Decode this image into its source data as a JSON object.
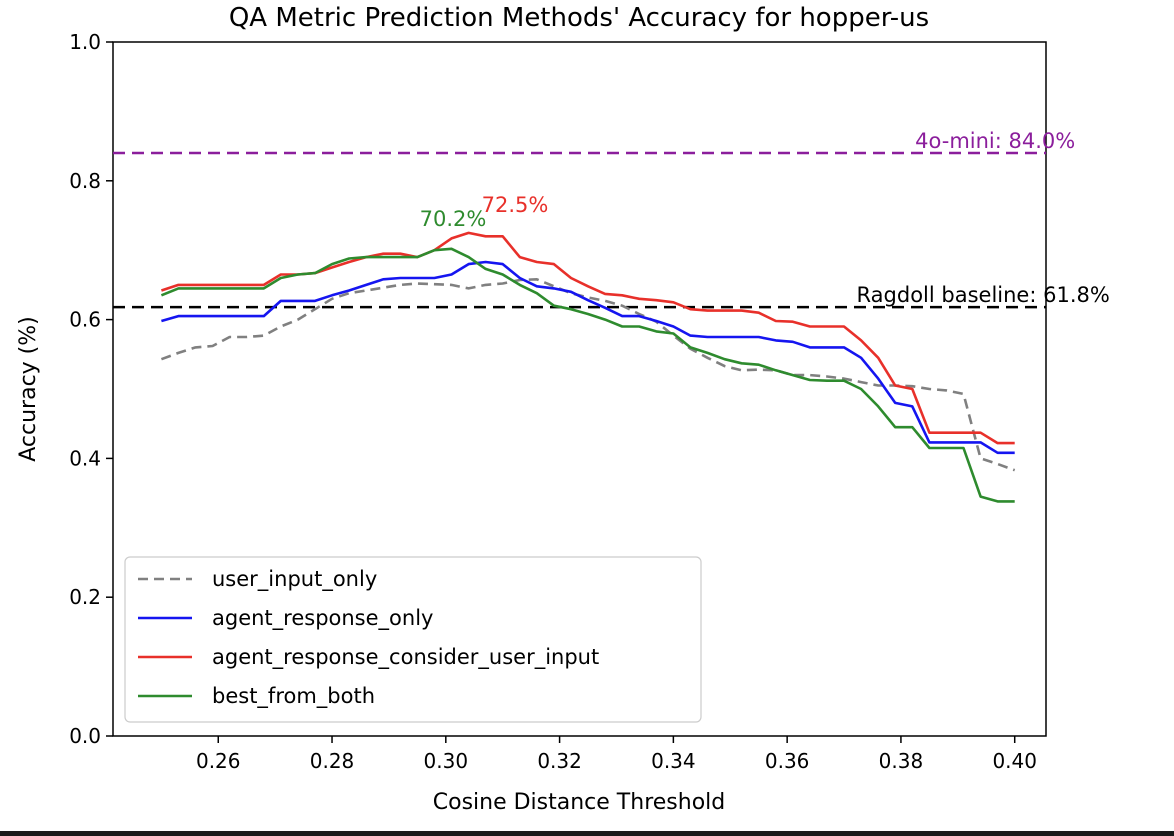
{
  "chart_data": {
    "type": "line",
    "title": "QA Metric Prediction Methods' Accuracy for hopper-us",
    "xlabel": "Cosine Distance Threshold",
    "ylabel": "Accuracy (%)",
    "xlim": [
      0.2415,
      0.4055
    ],
    "ylim": [
      0.0,
      1.0
    ],
    "xticks": [
      0.26,
      0.28,
      0.3,
      0.32,
      0.34,
      0.36,
      0.38,
      0.4
    ],
    "xtick_labels": [
      "0.26",
      "0.28",
      "0.30",
      "0.32",
      "0.34",
      "0.36",
      "0.38",
      "0.40"
    ],
    "yticks": [
      0.0,
      0.2,
      0.4,
      0.6,
      0.8,
      1.0
    ],
    "ytick_labels": [
      "0.0",
      "0.2",
      "0.4",
      "0.6",
      "0.8",
      "1.0"
    ],
    "grid": false,
    "legend_position": "lower-left",
    "x": [
      0.25,
      0.253,
      0.256,
      0.259,
      0.262,
      0.265,
      0.268,
      0.271,
      0.274,
      0.277,
      0.28,
      0.283,
      0.286,
      0.289,
      0.292,
      0.295,
      0.298,
      0.301,
      0.304,
      0.307,
      0.31,
      0.313,
      0.316,
      0.319,
      0.322,
      0.325,
      0.328,
      0.331,
      0.334,
      0.337,
      0.34,
      0.343,
      0.346,
      0.349,
      0.352,
      0.355,
      0.358,
      0.361,
      0.364,
      0.367,
      0.37,
      0.373,
      0.376,
      0.379,
      0.382,
      0.385,
      0.388,
      0.391,
      0.394,
      0.397,
      0.4
    ],
    "series": [
      {
        "name": "user_input_only",
        "color": "#808080",
        "dash": true,
        "values": [
          0.543,
          0.552,
          0.56,
          0.562,
          0.575,
          0.575,
          0.577,
          0.59,
          0.6,
          0.615,
          0.63,
          0.638,
          0.642,
          0.646,
          0.65,
          0.652,
          0.651,
          0.65,
          0.645,
          0.65,
          0.652,
          0.657,
          0.658,
          0.648,
          0.638,
          0.632,
          0.627,
          0.62,
          0.608,
          0.597,
          0.577,
          0.558,
          0.545,
          0.533,
          0.527,
          0.528,
          0.527,
          0.52,
          0.52,
          0.518,
          0.515,
          0.51,
          0.505,
          0.505,
          0.504,
          0.5,
          0.498,
          0.493,
          0.4,
          0.392,
          0.383
        ]
      },
      {
        "name": "agent_response_only",
        "color": "#1515f0",
        "dash": false,
        "values": [
          0.598,
          0.605,
          0.605,
          0.605,
          0.605,
          0.605,
          0.605,
          0.627,
          0.627,
          0.627,
          0.635,
          0.642,
          0.65,
          0.658,
          0.66,
          0.66,
          0.66,
          0.665,
          0.68,
          0.683,
          0.68,
          0.66,
          0.648,
          0.645,
          0.64,
          0.628,
          0.617,
          0.605,
          0.605,
          0.598,
          0.59,
          0.577,
          0.575,
          0.575,
          0.575,
          0.575,
          0.57,
          0.568,
          0.56,
          0.56,
          0.56,
          0.545,
          0.515,
          0.48,
          0.475,
          0.423,
          0.423,
          0.423,
          0.423,
          0.408,
          0.408
        ]
      },
      {
        "name": "agent_response_consider_user_input",
        "color": "#e8302a",
        "dash": false,
        "values": [
          0.642,
          0.65,
          0.65,
          0.65,
          0.65,
          0.65,
          0.65,
          0.665,
          0.665,
          0.667,
          0.675,
          0.683,
          0.69,
          0.695,
          0.695,
          0.69,
          0.7,
          0.717,
          0.725,
          0.72,
          0.72,
          0.69,
          0.683,
          0.68,
          0.66,
          0.648,
          0.637,
          0.635,
          0.63,
          0.628,
          0.625,
          0.615,
          0.613,
          0.613,
          0.613,
          0.61,
          0.598,
          0.597,
          0.59,
          0.59,
          0.59,
          0.57,
          0.545,
          0.505,
          0.5,
          0.437,
          0.437,
          0.437,
          0.437,
          0.422,
          0.422
        ]
      },
      {
        "name": "best_from_both",
        "color": "#2e8b2e",
        "dash": false,
        "values": [
          0.635,
          0.645,
          0.645,
          0.645,
          0.645,
          0.645,
          0.645,
          0.66,
          0.665,
          0.667,
          0.68,
          0.688,
          0.69,
          0.69,
          0.69,
          0.69,
          0.7,
          0.702,
          0.69,
          0.673,
          0.665,
          0.65,
          0.638,
          0.62,
          0.615,
          0.608,
          0.6,
          0.59,
          0.59,
          0.583,
          0.58,
          0.56,
          0.552,
          0.543,
          0.537,
          0.535,
          0.527,
          0.52,
          0.513,
          0.512,
          0.512,
          0.5,
          0.475,
          0.445,
          0.445,
          0.415,
          0.415,
          0.415,
          0.345,
          0.338,
          0.338
        ]
      }
    ],
    "reference_lines": [
      {
        "label": "4o-mini: 84.0%",
        "value": 0.84,
        "color": "#8b1e9c",
        "label_x": 0.3825
      },
      {
        "label": "Ragdoll baseline: 61.8%",
        "value": 0.618,
        "color": "#000000",
        "label_x": 0.3722
      }
    ],
    "annotations": [
      {
        "text": "70.2%",
        "x": 0.301,
        "y": 0.702,
        "color": "#2e8b2e",
        "text_x": 0.2954,
        "text_y": 0.735
      },
      {
        "text": "72.5%",
        "x": 0.304,
        "y": 0.725,
        "color": "#e8302a",
        "text_x": 0.3063,
        "text_y": 0.755
      }
    ]
  }
}
